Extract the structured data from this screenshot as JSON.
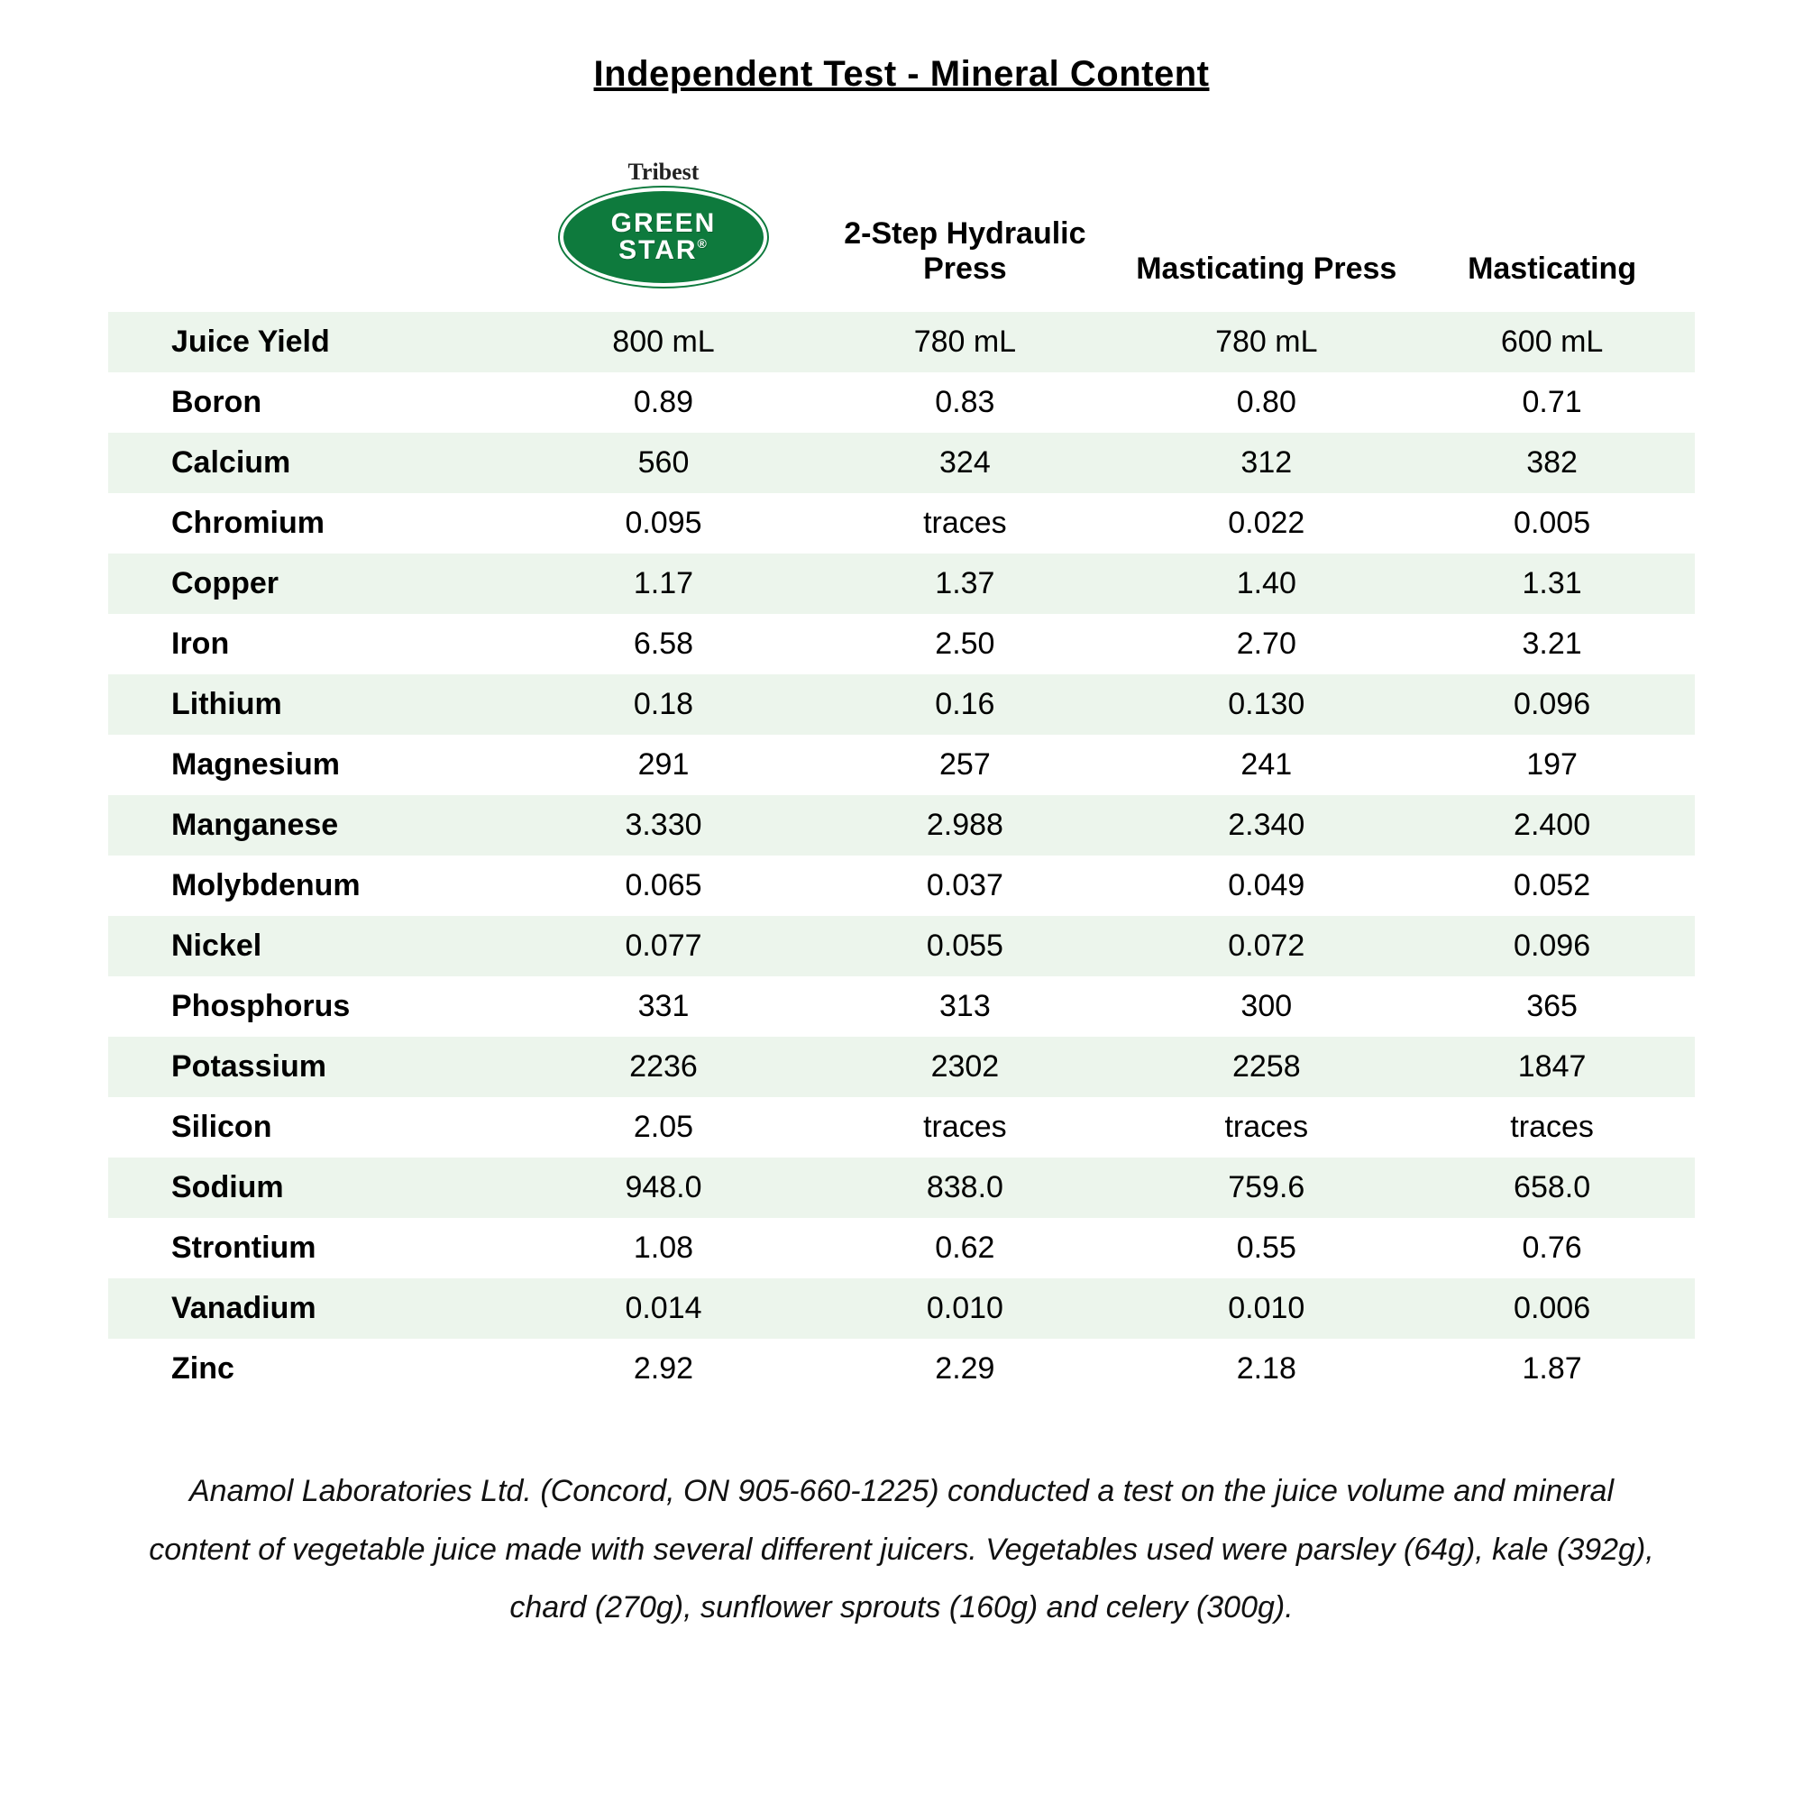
{
  "title": "Independent Test - Mineral Content",
  "logo": {
    "top_text": "Tribest",
    "line1": "GREEN",
    "line2": "STAR",
    "oval_bg": "#0e7a3d",
    "oval_text_color": "#ffffff"
  },
  "columns": {
    "col2": "2-Step Hydraulic Press",
    "col3": "Masticating Press",
    "col4": "Masticating"
  },
  "stripe_odd_bg": "#ecf5ec",
  "rows": [
    {
      "label": "Juice Yield",
      "c1": "800 mL",
      "c2": "780 mL",
      "c3": "780 mL",
      "c4": "600 mL"
    },
    {
      "label": "Boron",
      "c1": "0.89",
      "c2": "0.83",
      "c3": "0.80",
      "c4": "0.71"
    },
    {
      "label": "Calcium",
      "c1": "560",
      "c2": "324",
      "c3": "312",
      "c4": "382"
    },
    {
      "label": "Chromium",
      "c1": "0.095",
      "c2": "traces",
      "c3": "0.022",
      "c4": "0.005"
    },
    {
      "label": "Copper",
      "c1": "1.17",
      "c2": "1.37",
      "c3": "1.40",
      "c4": "1.31"
    },
    {
      "label": "Iron",
      "c1": "6.58",
      "c2": "2.50",
      "c3": "2.70",
      "c4": "3.21"
    },
    {
      "label": "Lithium",
      "c1": "0.18",
      "c2": "0.16",
      "c3": "0.130",
      "c4": "0.096"
    },
    {
      "label": "Magnesium",
      "c1": "291",
      "c2": "257",
      "c3": "241",
      "c4": "197"
    },
    {
      "label": "Manganese",
      "c1": "3.330",
      "c2": "2.988",
      "c3": "2.340",
      "c4": "2.400"
    },
    {
      "label": "Molybdenum",
      "c1": "0.065",
      "c2": "0.037",
      "c3": "0.049",
      "c4": "0.052"
    },
    {
      "label": "Nickel",
      "c1": "0.077",
      "c2": "0.055",
      "c3": "0.072",
      "c4": "0.096"
    },
    {
      "label": "Phosphorus",
      "c1": "331",
      "c2": "313",
      "c3": "300",
      "c4": "365"
    },
    {
      "label": "Potassium",
      "c1": "2236",
      "c2": "2302",
      "c3": "2258",
      "c4": "1847"
    },
    {
      "label": "Silicon",
      "c1": "2.05",
      "c2": "traces",
      "c3": "traces",
      "c4": "traces"
    },
    {
      "label": "Sodium",
      "c1": "948.0",
      "c2": "838.0",
      "c3": "759.6",
      "c4": "658.0"
    },
    {
      "label": "Strontium",
      "c1": "1.08",
      "c2": "0.62",
      "c3": "0.55",
      "c4": "0.76"
    },
    {
      "label": "Vanadium",
      "c1": "0.014",
      "c2": "0.010",
      "c3": "0.010",
      "c4": "0.006"
    },
    {
      "label": "Zinc",
      "c1": "2.92",
      "c2": "2.29",
      "c3": "2.18",
      "c4": "1.87"
    }
  ],
  "footer": "Anamol Laboratories Ltd. (Concord, ON 905-660-1225) conducted a test on the juice volume and mineral content of vegetable juice made with several different juicers. Vegetables used were parsley (64g), kale (392g), chard (270g), sunflower sprouts (160g) and celery (300g)."
}
